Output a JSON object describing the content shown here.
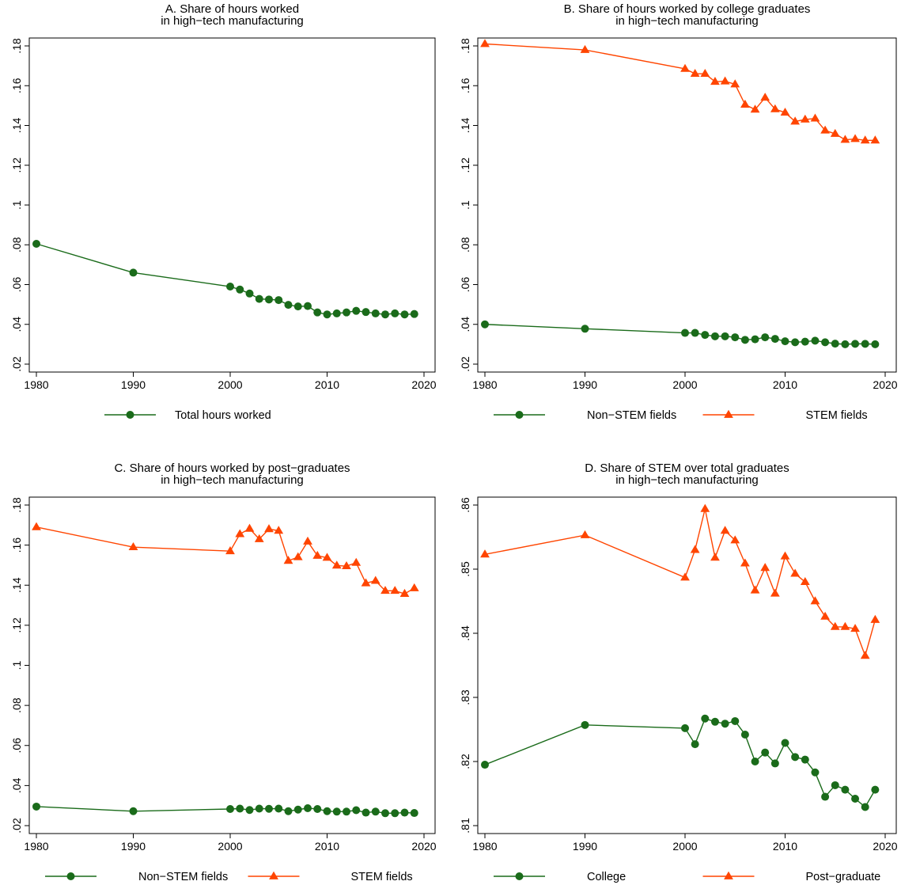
{
  "chart_data": [
    {
      "type": "line",
      "panel": "A",
      "title_lines": [
        "A. Share of hours worked",
        "in high−tech manufacturing"
      ],
      "xlabel": "",
      "ylabel": "",
      "xlim": [
        1980,
        2020
      ],
      "ylim": [
        0.02,
        0.18
      ],
      "x_ticks": [
        1980,
        1990,
        2000,
        2010,
        2020
      ],
      "x_tick_labels": [
        "1980",
        "1990",
        "2000",
        "2010",
        "2020"
      ],
      "y_ticks": [
        0.02,
        0.04,
        0.06,
        0.08,
        0.1,
        0.12,
        0.14,
        0.16,
        0.18
      ],
      "y_tick_labels": [
        ".02",
        ".04",
        ".06",
        ".08",
        ".1",
        ".12",
        ".14",
        ".16",
        ".18"
      ],
      "grid": false,
      "legend_position": "bottom",
      "series": [
        {
          "name": "Total hours worked",
          "marker": "circle",
          "color": "#1a6b1a",
          "x": [
            1980,
            1990,
            2000,
            2001,
            2002,
            2003,
            2004,
            2005,
            2006,
            2007,
            2008,
            2009,
            2010,
            2011,
            2012,
            2013,
            2014,
            2015,
            2016,
            2017,
            2018,
            2019
          ],
          "y": [
            0.0805,
            0.066,
            0.059,
            0.0575,
            0.0555,
            0.0528,
            0.0525,
            0.0522,
            0.0498,
            0.049,
            0.0492,
            0.046,
            0.045,
            0.0455,
            0.046,
            0.0468,
            0.0462,
            0.0455,
            0.045,
            0.0455,
            0.045,
            0.0452
          ]
        }
      ]
    },
    {
      "type": "line",
      "panel": "B",
      "title_lines": [
        "B. Share of hours worked by college graduates",
        "in high−tech manufacturing"
      ],
      "xlabel": "",
      "ylabel": "",
      "xlim": [
        1980,
        2020
      ],
      "ylim": [
        0.02,
        0.18
      ],
      "x_ticks": [
        1980,
        1990,
        2000,
        2010,
        2020
      ],
      "x_tick_labels": [
        "1980",
        "1990",
        "2000",
        "2010",
        "2020"
      ],
      "y_ticks": [
        0.02,
        0.04,
        0.06,
        0.08,
        0.1,
        0.12,
        0.14,
        0.16,
        0.18
      ],
      "y_tick_labels": [
        ".02",
        ".04",
        ".06",
        ".08",
        ".1",
        ".12",
        ".14",
        ".16",
        ".18"
      ],
      "grid": false,
      "legend_position": "bottom",
      "series": [
        {
          "name": "Non−STEM fields",
          "marker": "circle",
          "color": "#1a6b1a",
          "x": [
            1980,
            1990,
            2000,
            2001,
            2002,
            2003,
            2004,
            2005,
            2006,
            2007,
            2008,
            2009,
            2010,
            2011,
            2012,
            2013,
            2014,
            2015,
            2016,
            2017,
            2018,
            2019
          ],
          "y": [
            0.04,
            0.0378,
            0.0357,
            0.0357,
            0.0347,
            0.034,
            0.034,
            0.0335,
            0.0322,
            0.0325,
            0.0335,
            0.0327,
            0.0315,
            0.031,
            0.0313,
            0.0318,
            0.031,
            0.0303,
            0.03,
            0.0302,
            0.0302,
            0.03
          ]
        },
        {
          "name": "STEM fields",
          "marker": "triangle",
          "color": "#ff4500",
          "x": [
            1980,
            1990,
            2000,
            2001,
            2002,
            2003,
            2004,
            2005,
            2006,
            2007,
            2008,
            2009,
            2010,
            2011,
            2012,
            2013,
            2014,
            2015,
            2016,
            2017,
            2018,
            2019
          ],
          "y": [
            0.181,
            0.178,
            0.1685,
            0.166,
            0.166,
            0.162,
            0.1622,
            0.1607,
            0.1505,
            0.148,
            0.154,
            0.1482,
            0.1465,
            0.142,
            0.143,
            0.1435,
            0.1375,
            0.1358,
            0.1328,
            0.1332,
            0.1325,
            0.1325
          ]
        }
      ]
    },
    {
      "type": "line",
      "panel": "C",
      "title_lines": [
        "C. Share of hours worked by post−graduates",
        "in high−tech manufacturing"
      ],
      "xlabel": "",
      "ylabel": "",
      "xlim": [
        1980,
        2020
      ],
      "ylim": [
        0.02,
        0.18
      ],
      "x_ticks": [
        1980,
        1990,
        2000,
        2010,
        2020
      ],
      "x_tick_labels": [
        "1980",
        "1990",
        "2000",
        "2010",
        "2020"
      ],
      "y_ticks": [
        0.02,
        0.04,
        0.06,
        0.08,
        0.1,
        0.12,
        0.14,
        0.16,
        0.18
      ],
      "y_tick_labels": [
        ".02",
        ".04",
        ".06",
        ".08",
        ".1",
        ".12",
        ".14",
        ".16",
        ".18"
      ],
      "grid": false,
      "legend_position": "bottom",
      "series": [
        {
          "name": "Non−STEM fields",
          "marker": "circle",
          "color": "#1a6b1a",
          "x": [
            1980,
            1990,
            2000,
            2001,
            2002,
            2003,
            2004,
            2005,
            2006,
            2007,
            2008,
            2009,
            2010,
            2011,
            2012,
            2013,
            2014,
            2015,
            2016,
            2017,
            2018,
            2019
          ],
          "y": [
            0.0295,
            0.0272,
            0.0283,
            0.0285,
            0.0278,
            0.0285,
            0.0284,
            0.0285,
            0.0272,
            0.028,
            0.0287,
            0.0283,
            0.0272,
            0.027,
            0.027,
            0.0277,
            0.0265,
            0.027,
            0.0262,
            0.0262,
            0.0265,
            0.0263
          ]
        },
        {
          "name": "STEM fields",
          "marker": "triangle",
          "color": "#ff4500",
          "x": [
            1980,
            1990,
            2000,
            2001,
            2002,
            2003,
            2004,
            2005,
            2006,
            2007,
            2008,
            2009,
            2010,
            2011,
            2012,
            2013,
            2014,
            2015,
            2016,
            2017,
            2018,
            2019
          ],
          "y": [
            0.169,
            0.159,
            0.157,
            0.1655,
            0.1682,
            0.163,
            0.168,
            0.1672,
            0.1522,
            0.154,
            0.1618,
            0.1547,
            0.1537,
            0.1498,
            0.1495,
            0.1512,
            0.141,
            0.1422,
            0.1372,
            0.1372,
            0.1357,
            0.1385
          ]
        }
      ]
    },
    {
      "type": "line",
      "panel": "D",
      "title_lines": [
        "D. Share of STEM over total graduates",
        "in high−tech manufacturing"
      ],
      "xlabel": "",
      "ylabel": "",
      "xlim": [
        1980,
        2020
      ],
      "ylim": [
        0.81,
        0.86
      ],
      "x_ticks": [
        1980,
        1990,
        2000,
        2010,
        2020
      ],
      "x_tick_labels": [
        "1980",
        "1990",
        "2000",
        "2010",
        "2020"
      ],
      "y_ticks": [
        0.81,
        0.82,
        0.83,
        0.84,
        0.85,
        0.86
      ],
      "y_tick_labels": [
        ".81",
        ".82",
        ".83",
        ".84",
        ".85",
        ".86"
      ],
      "grid": false,
      "legend_position": "bottom",
      "series": [
        {
          "name": "College",
          "marker": "circle",
          "color": "#1a6b1a",
          "x": [
            1980,
            1990,
            2000,
            2001,
            2002,
            2003,
            2004,
            2005,
            2006,
            2007,
            2008,
            2009,
            2010,
            2011,
            2012,
            2013,
            2014,
            2015,
            2016,
            2017,
            2018,
            2019
          ],
          "y": [
            0.8195,
            0.8257,
            0.8252,
            0.8227,
            0.8267,
            0.8262,
            0.8259,
            0.8263,
            0.8242,
            0.82,
            0.8214,
            0.8197,
            0.8229,
            0.8207,
            0.8203,
            0.8183,
            0.8145,
            0.8163,
            0.8156,
            0.8142,
            0.8129,
            0.8156
          ]
        },
        {
          "name": "Post−graduate",
          "marker": "triangle",
          "color": "#ff4500",
          "x": [
            1980,
            1990,
            2000,
            2001,
            2002,
            2003,
            2004,
            2005,
            2006,
            2007,
            2008,
            2009,
            2010,
            2011,
            2012,
            2013,
            2014,
            2015,
            2016,
            2017,
            2018,
            2019
          ],
          "y": [
            0.8523,
            0.8553,
            0.8487,
            0.853,
            0.8594,
            0.8518,
            0.856,
            0.8545,
            0.8509,
            0.8467,
            0.8502,
            0.8462,
            0.852,
            0.8493,
            0.848,
            0.845,
            0.8426,
            0.841,
            0.841,
            0.8407,
            0.8365,
            0.8421
          ]
        }
      ]
    }
  ]
}
